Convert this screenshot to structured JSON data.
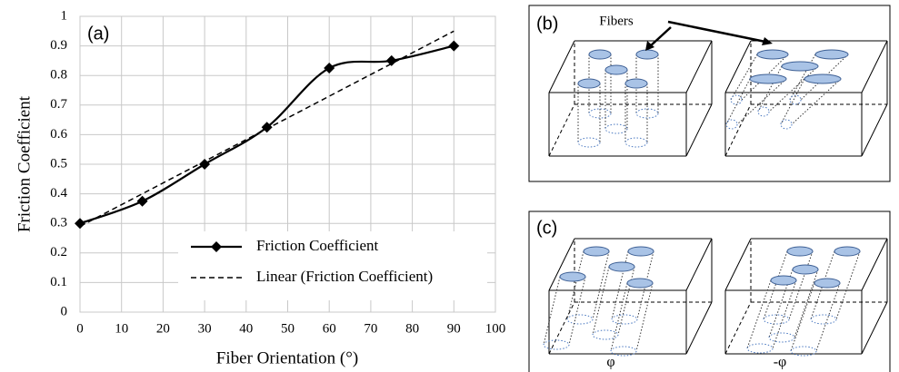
{
  "chart_data": {
    "type": "line",
    "panel_label": "(a)",
    "xlabel": "Fiber Orientation (°)",
    "ylabel": "Friction Coefficient",
    "series": [
      {
        "name": "Friction Coefficient",
        "color": "#000000",
        "style": "solid",
        "marker": "diamond",
        "x": [
          0,
          15,
          30,
          45,
          60,
          75,
          90
        ],
        "values": [
          0.3,
          0.375,
          0.5,
          0.625,
          0.825,
          0.85,
          0.9
        ]
      },
      {
        "name": "Linear (Friction Coefficient)",
        "color": "#000000",
        "style": "dashed",
        "x": [
          0,
          90
        ],
        "values": [
          0.29,
          0.95
        ]
      }
    ],
    "xlim": [
      0,
      100
    ],
    "xticks": [
      0,
      10,
      20,
      30,
      40,
      50,
      60,
      70,
      80,
      90,
      100
    ],
    "ylim": [
      0,
      1
    ],
    "yticks": [
      0,
      0.1,
      0.2,
      0.3,
      0.4,
      0.5,
      0.6,
      0.7,
      0.8,
      0.9,
      1
    ],
    "grid": true,
    "legend": "lower right"
  },
  "diagrams": {
    "b": {
      "label": "(b)",
      "annotation": "Fibers"
    },
    "c": {
      "label": "(c)",
      "left_angle": "φ",
      "right_angle": "-φ"
    }
  }
}
